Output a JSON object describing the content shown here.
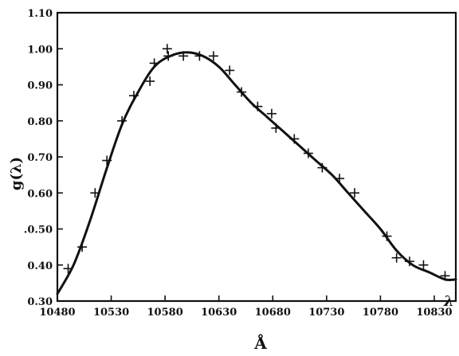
{
  "chart_data": {
    "type": "scatter",
    "xlabel": "Å",
    "ylabel": "g(λ)",
    "x_axis_symbol": "λ",
    "xlim": [
      10480,
      10850
    ],
    "ylim": [
      0.3,
      1.1
    ],
    "x_ticks": [
      "10480",
      "10530",
      "10580",
      "10630",
      "10680",
      "10730",
      "10780",
      "10830"
    ],
    "y_ticks": [
      "0.30",
      "0.40",
      ".0.50",
      "0.60",
      "0.70",
      "0.80",
      "0.90",
      "1.00",
      "1.10"
    ],
    "grid": false,
    "series": [
      {
        "kind": "markers",
        "points": [
          [
            10490,
            0.39
          ],
          [
            10503,
            0.45
          ],
          [
            10515,
            0.6
          ],
          [
            10526,
            0.69
          ],
          [
            10540,
            0.8
          ],
          [
            10551,
            0.87
          ],
          [
            10566,
            0.91
          ],
          [
            10570,
            0.96
          ],
          [
            10582,
            1.0
          ],
          [
            10583,
            0.98
          ],
          [
            10597,
            0.98
          ],
          [
            10612,
            0.98
          ],
          [
            10625,
            0.98
          ],
          [
            10640,
            0.94
          ],
          [
            10651,
            0.88
          ],
          [
            10666,
            0.84
          ],
          [
            10679,
            0.82
          ],
          [
            10683,
            0.78
          ],
          [
            10700,
            0.75
          ],
          [
            10713,
            0.71
          ],
          [
            10726,
            0.67
          ],
          [
            10742,
            0.64
          ],
          [
            10756,
            0.6
          ],
          [
            10786,
            0.48
          ],
          [
            10795,
            0.42
          ],
          [
            10807,
            0.41
          ],
          [
            10820,
            0.4
          ],
          [
            10840,
            0.37
          ]
        ]
      },
      {
        "kind": "fitted-curve",
        "points": [
          [
            10480,
            0.32
          ],
          [
            10495,
            0.4
          ],
          [
            10510,
            0.52
          ],
          [
            10525,
            0.66
          ],
          [
            10540,
            0.79
          ],
          [
            10555,
            0.88
          ],
          [
            10570,
            0.95
          ],
          [
            10585,
            0.98
          ],
          [
            10600,
            0.99
          ],
          [
            10615,
            0.98
          ],
          [
            10630,
            0.95
          ],
          [
            10645,
            0.9
          ],
          [
            10660,
            0.85
          ],
          [
            10675,
            0.81
          ],
          [
            10690,
            0.77
          ],
          [
            10705,
            0.73
          ],
          [
            10720,
            0.69
          ],
          [
            10735,
            0.65
          ],
          [
            10750,
            0.6
          ],
          [
            10765,
            0.55
          ],
          [
            10780,
            0.5
          ],
          [
            10795,
            0.44
          ],
          [
            10810,
            0.4
          ],
          [
            10825,
            0.38
          ],
          [
            10840,
            0.36
          ],
          [
            10850,
            0.36
          ]
        ]
      }
    ]
  }
}
